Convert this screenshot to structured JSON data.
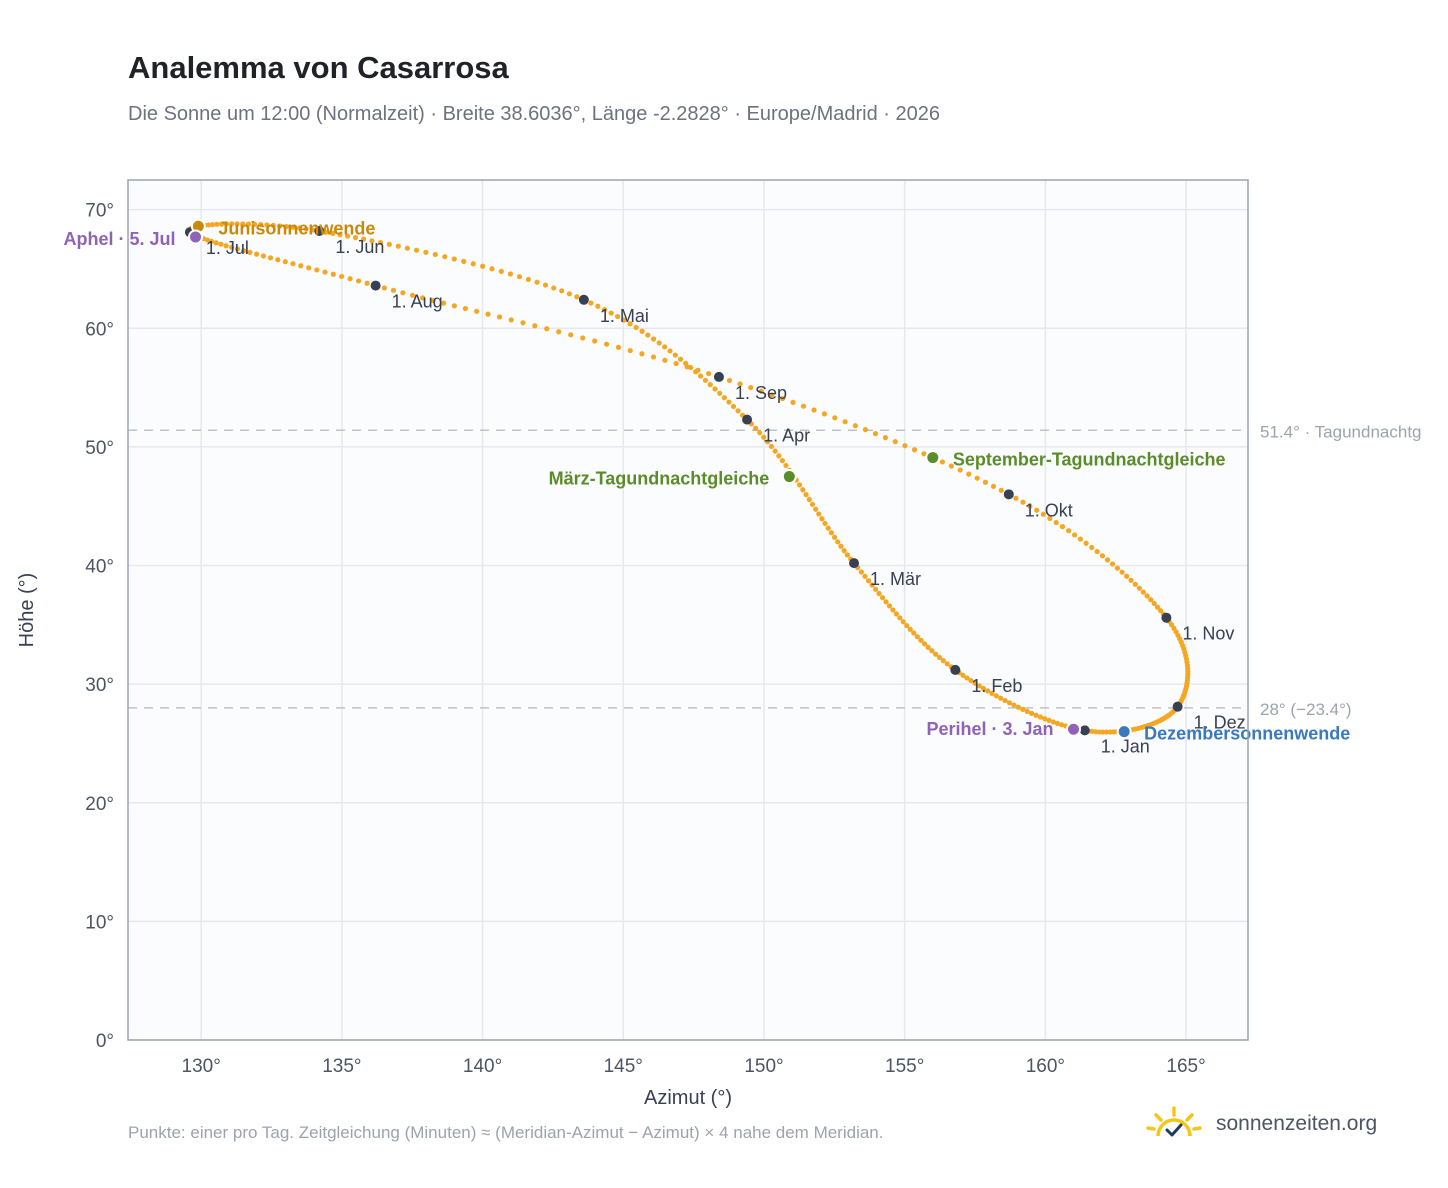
{
  "header": {
    "title": "Analemma von Casarrosa",
    "subtitle": "Die Sonne um 12:00 (Normalzeit) · Breite 38.6036°, Länge -2.2828° · Europe/Madrid · 2026"
  },
  "footer": {
    "note": "Punkte: einer pro Tag. Zeitgleichung (Minuten) ≈ (Meridian-Azimut − Azimut) × 4 nahe dem Meridian.",
    "brand": "sonnenzeiten.org",
    "brand_icon": "sun-check-icon"
  },
  "chart_data": {
    "type": "scatter",
    "xlabel": "Azimut (°)",
    "ylabel": "Höhe (°)",
    "xlim": [
      127.4,
      167.2
    ],
    "ylim": [
      0,
      72.5
    ],
    "xticks": [
      130,
      135,
      140,
      145,
      150,
      155,
      160,
      165
    ],
    "yticks": [
      0,
      10,
      20,
      30,
      40,
      50,
      60,
      70
    ],
    "x_tick_labels": [
      "130°",
      "135°",
      "140°",
      "145°",
      "150°",
      "155°",
      "160°",
      "165°"
    ],
    "y_tick_labels": [
      "0°",
      "10°",
      "20°",
      "30°",
      "40°",
      "50°",
      "60°",
      "70°"
    ],
    "grid": true,
    "colors": {
      "curve": "#f5a623",
      "month": "#374151",
      "solstice_june": "#c98a0b",
      "solstice_december": "#3a78bf",
      "equinox": "#5b8c2a",
      "apsis": "#8e63b5",
      "reference": "#bcc3cc"
    },
    "curve_nodes": [
      {
        "date": "1. Jan",
        "x": 161.4,
        "y": 26.1
      },
      {
        "date": "1. Feb",
        "x": 156.8,
        "y": 31.2
      },
      {
        "date": "1. Mär",
        "x": 153.2,
        "y": 40.2
      },
      {
        "date": "1. Apr",
        "x": 149.4,
        "y": 52.3
      },
      {
        "date": "1. Mai",
        "x": 143.6,
        "y": 62.4
      },
      {
        "date": "1. Jun",
        "x": 134.2,
        "y": 68.2
      },
      {
        "date": "1. Jul",
        "x": 129.6,
        "y": 68.1
      },
      {
        "date": "1. Aug",
        "x": 136.2,
        "y": 63.6
      },
      {
        "date": "1. Sep",
        "x": 148.4,
        "y": 55.9
      },
      {
        "date": "1. Okt",
        "x": 158.7,
        "y": 46.0
      },
      {
        "date": "1. Nov",
        "x": 164.3,
        "y": 35.6
      },
      {
        "date": "1. Dez",
        "x": 164.7,
        "y": 28.1
      },
      {
        "date": "1. Jan",
        "x": 161.4,
        "y": 26.1
      }
    ],
    "months": [
      {
        "label": "1. Jan",
        "x": 161.4,
        "y": 26.1
      },
      {
        "label": "1. Feb",
        "x": 156.8,
        "y": 31.2
      },
      {
        "label": "1. Mär",
        "x": 153.2,
        "y": 40.2
      },
      {
        "label": "1. Apr",
        "x": 149.4,
        "y": 52.3
      },
      {
        "label": "1. Mai",
        "x": 143.6,
        "y": 62.4
      },
      {
        "label": "1. Jun",
        "x": 134.2,
        "y": 68.2
      },
      {
        "label": "1. Jul",
        "x": 129.6,
        "y": 68.1
      },
      {
        "label": "1. Aug",
        "x": 136.2,
        "y": 63.6
      },
      {
        "label": "1. Sep",
        "x": 148.4,
        "y": 55.9
      },
      {
        "label": "1. Okt",
        "x": 158.7,
        "y": 46.0
      },
      {
        "label": "1. Nov",
        "x": 164.3,
        "y": 35.6
      },
      {
        "label": "1. Dez",
        "x": 164.7,
        "y": 28.1
      }
    ],
    "events": [
      {
        "label": "Junisonnenwende",
        "x": 129.9,
        "y": 68.6,
        "color": "#c98a0b"
      },
      {
        "label": "Aphel · 5. Jul",
        "x": 129.8,
        "y": 67.7,
        "color": "#8e63b5"
      },
      {
        "label": "März-Tagundnachtgleiche",
        "x": 150.9,
        "y": 47.5,
        "color": "#5b8c2a"
      },
      {
        "label": "September-Tagundnachtgleiche",
        "x": 156.0,
        "y": 49.1,
        "color": "#5b8c2a"
      },
      {
        "label": "Perihel · 3. Jan",
        "x": 161.0,
        "y": 26.2,
        "color": "#8e63b5"
      },
      {
        "label": "Dezembersonnenwende",
        "x": 162.8,
        "y": 26.0,
        "color": "#3a78bf"
      }
    ],
    "reference_lines": [
      {
        "y": 51.4,
        "label": "51.4° · Tagundnachtg"
      },
      {
        "y": 28.0,
        "label": "28° (−23.4°)"
      }
    ]
  }
}
